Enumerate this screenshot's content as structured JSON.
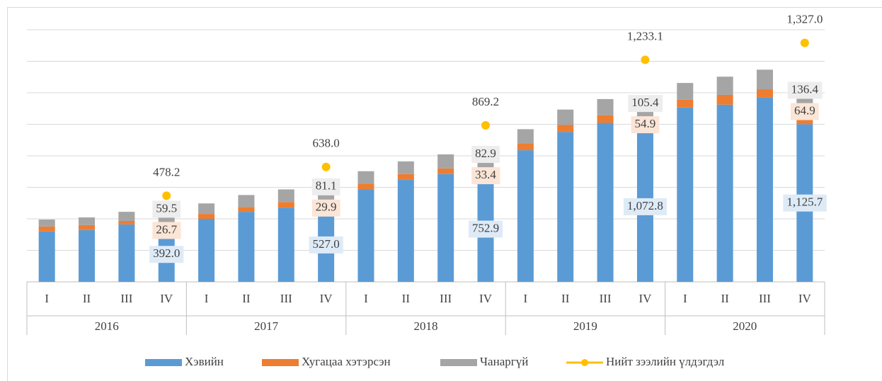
{
  "chart_data": {
    "type": "bar",
    "stacked": true,
    "categories": [
      "I",
      "II",
      "III",
      "IV",
      "I",
      "II",
      "III",
      "IV",
      "I",
      "II",
      "III",
      "IV",
      "I",
      "II",
      "III",
      "IV",
      "I",
      "II",
      "III",
      "IV"
    ],
    "groups": [
      "2016",
      "2017",
      "2018",
      "2019",
      "2020"
    ],
    "ylim": [
      0,
      1800
    ],
    "yticks": [
      0,
      225,
      450,
      675,
      900,
      1125,
      1350,
      1575,
      1800
    ],
    "y2lim": [
      0,
      1400
    ],
    "grid": true,
    "legend": "bottom",
    "series": [
      {
        "name": "Хэвийн",
        "type": "bar",
        "color": "#5b9bd5",
        "values": [
          360,
          370,
          410,
          392,
          450,
          500,
          530,
          527,
          660,
          730,
          770,
          752.9,
          940,
          1070,
          1135,
          1072.8,
          1245,
          1265,
          1315,
          1125.7
        ],
        "value_labels": [
          null,
          null,
          null,
          "392.0",
          null,
          null,
          null,
          "527.0",
          null,
          null,
          null,
          "752.9",
          null,
          null,
          null,
          "1,072.8",
          null,
          null,
          null,
          "1,125.7"
        ]
      },
      {
        "name": "Хугацаа хэтэрсэн",
        "type": "bar",
        "color": "#ed7d31",
        "values": [
          35,
          35,
          25,
          26.7,
          35,
          35,
          40,
          29.9,
          40,
          40,
          40,
          33.4,
          50,
          50,
          55,
          54.9,
          55,
          70,
          60,
          64.9
        ],
        "value_labels": [
          null,
          null,
          null,
          "26.7",
          null,
          null,
          null,
          "29.9",
          null,
          null,
          null,
          "33.4",
          null,
          null,
          null,
          "54.9",
          null,
          null,
          null,
          "64.9"
        ]
      },
      {
        "name": "Чанаргүй",
        "type": "bar",
        "color": "#a5a5a5",
        "values": [
          50,
          55,
          65,
          59.5,
          75,
          85,
          90,
          81.1,
          90,
          90,
          100,
          82.9,
          100,
          110,
          115,
          105.4,
          120,
          130,
          140,
          136.4
        ],
        "value_labels": [
          null,
          null,
          null,
          "59.5",
          null,
          null,
          null,
          "81.1",
          null,
          null,
          null,
          "82.9",
          null,
          null,
          null,
          "105.4",
          null,
          null,
          null,
          "136.4"
        ]
      },
      {
        "name": "Нийт зээлийн үлдэгдэл",
        "type": "line",
        "axis": "y2",
        "color": "#ffc000",
        "values": [
          null,
          null,
          null,
          478.2,
          null,
          null,
          null,
          638.0,
          null,
          null,
          null,
          869.2,
          null,
          null,
          null,
          1233.1,
          null,
          null,
          null,
          1327.0
        ],
        "value_labels": [
          null,
          null,
          null,
          "478.2",
          null,
          null,
          null,
          "638.0",
          null,
          null,
          null,
          "869.2",
          null,
          null,
          null,
          "1,233.1",
          null,
          null,
          null,
          "1,327.0"
        ]
      }
    ]
  }
}
